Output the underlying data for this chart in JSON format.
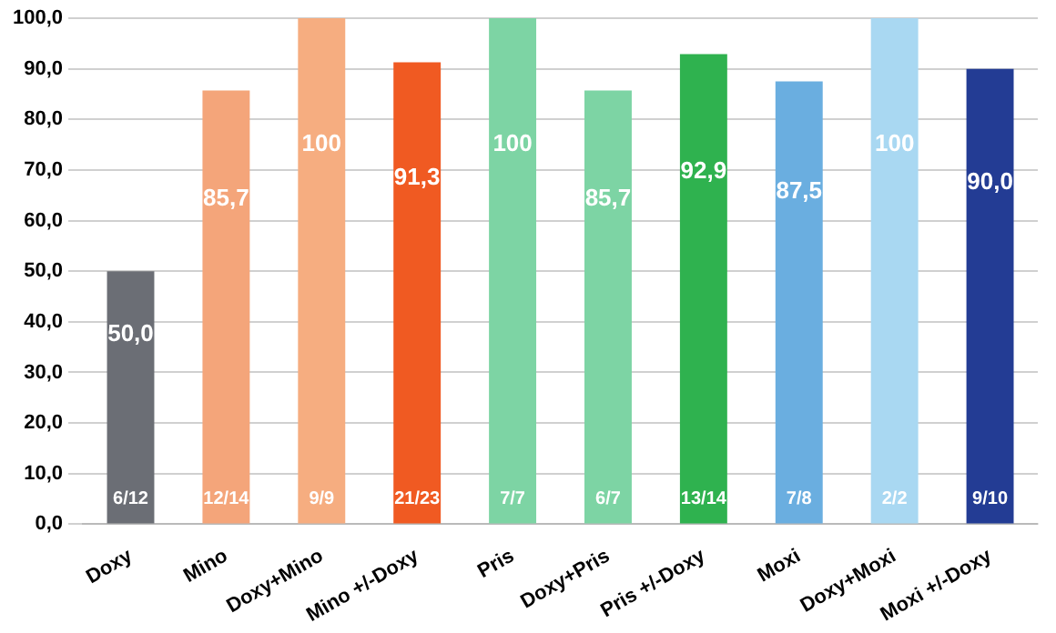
{
  "chart_data": {
    "type": "bar",
    "categories": [
      "Doxy",
      "Mino",
      "Doxy+Mino",
      "Mino +/-Doxy",
      "Pris",
      "Doxy+Pris",
      "Pris +/-Doxy",
      "Moxi",
      "Doxy+Moxi",
      "Moxi +/-Doxy"
    ],
    "values": [
      50.0,
      85.7,
      100,
      91.3,
      100,
      85.7,
      92.9,
      87.5,
      100,
      90.0
    ],
    "colors": [
      "#6b6e75",
      "#f4a57a",
      "#f6ad80",
      "#f05a22",
      "#7dd4a4",
      "#7dd4a4",
      "#2fb24f",
      "#6aaee0",
      "#a9d8f2",
      "#233c94"
    ],
    "value_labels": [
      "50,0",
      "85,7",
      "100",
      "91,3",
      "100",
      "85,7",
      "92,9",
      "87,5",
      "100",
      "90,0"
    ],
    "ylim": [
      0,
      100
    ],
    "yticks": [
      {
        "value": 0,
        "label": "0,0"
      },
      {
        "value": 10,
        "label": "10,0"
      },
      {
        "value": 20,
        "label": "20,0"
      },
      {
        "value": 30,
        "label": "30,0"
      },
      {
        "value": 40,
        "label": "40,0"
      },
      {
        "value": 50,
        "label": "50,0"
      },
      {
        "value": 60,
        "label": "60,0"
      },
      {
        "value": 70,
        "label": "70,0"
      },
      {
        "value": 80,
        "label": "80,0"
      },
      {
        "value": 90,
        "label": "90,0"
      },
      {
        "value": 100,
        "label": "100,0"
      }
    ],
    "grid": "y",
    "annotations": [
      "6/12",
      "12/14",
      "9/9",
      "21/23",
      "7/7",
      "6/7",
      "13/14",
      "7/8",
      "2/2",
      "9/10"
    ]
  }
}
